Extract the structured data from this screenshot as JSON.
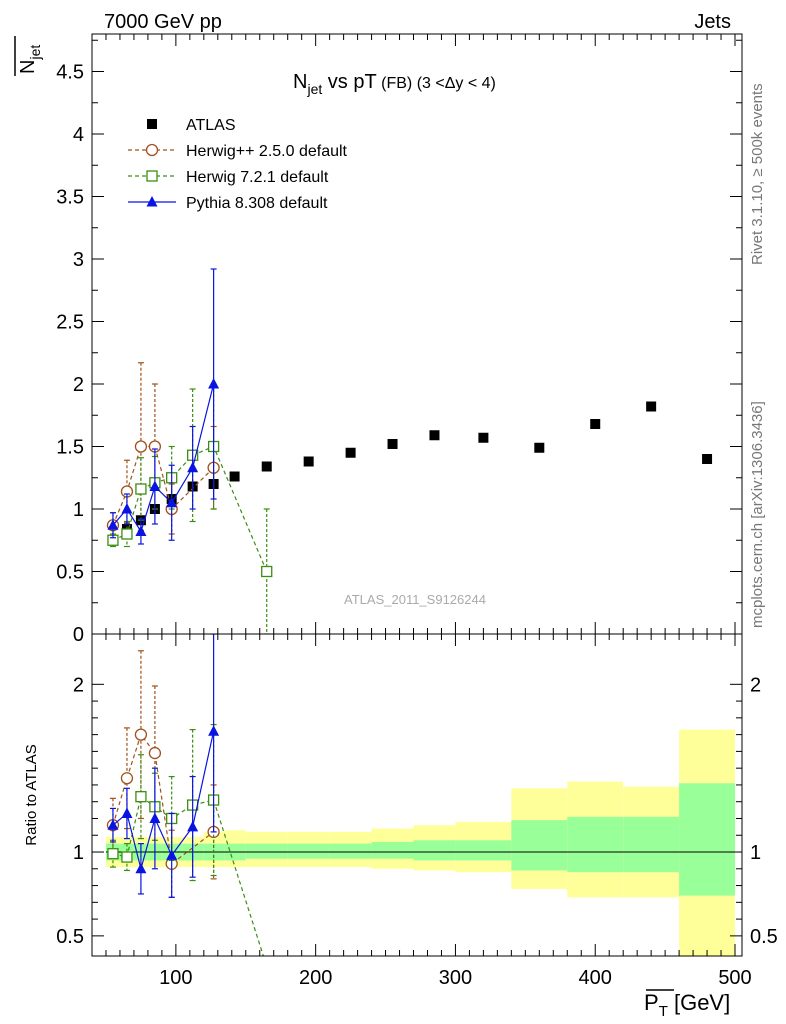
{
  "header": {
    "left": "7000 GeV pp",
    "right": "Jets"
  },
  "side_labels": {
    "top": "Rivet 3.1.10, ≥ 500k events",
    "bottom": "mcplots.cern.ch [arXiv:1306.3436]"
  },
  "watermark": "ATLAS_2011_S9126244",
  "colors": {
    "atlas": "#000000",
    "herwigpp": "#a0521e",
    "herwig7": "#3b8e12",
    "pythia": "#0a14e0",
    "band_outer": "#ffff99",
    "band_inner": "#99ff99"
  },
  "chart_data": [
    {
      "type": "scatter",
      "title_main": "N",
      "title_sub": "jet",
      "title_rest": " vs pT",
      "title_small": " (FB) (3 <Δy < 4)",
      "ylabel_main": "N",
      "ylabel_sub": "jet",
      "xlim": [
        40,
        505
      ],
      "ylim": [
        0,
        4.8
      ],
      "yticks": [
        0,
        0.5,
        1,
        1.5,
        2,
        2.5,
        3,
        3.5,
        4,
        4.5
      ],
      "ytick_labels": [
        "0",
        "0.5",
        "1",
        "1.5",
        "2",
        "2.5",
        "3",
        "3.5",
        "4",
        "4.5"
      ],
      "legend_position": "top-left",
      "series": [
        {
          "name": "ATLAS",
          "style": "square-filled",
          "x": [
            55,
            65,
            75,
            85,
            97,
            112,
            127,
            142,
            165,
            195,
            225,
            255,
            285,
            320,
            360,
            400,
            440,
            480
          ],
          "y": [
            0.75,
            0.84,
            0.91,
            1.0,
            1.08,
            1.18,
            1.2,
            1.26,
            1.34,
            1.38,
            1.45,
            1.52,
            1.59,
            1.57,
            1.49,
            1.68,
            1.82,
            1.4
          ]
        },
        {
          "name": "Herwig++ 2.5.0 default",
          "style": "circle-open-dashed",
          "x": [
            55,
            65,
            75,
            85,
            97,
            127
          ],
          "y": [
            0.87,
            1.14,
            1.5,
            1.5,
            1.0,
            1.33
          ],
          "yerr": [
            0.1,
            0.25,
            0.67,
            0.5,
            0.2,
            0.33
          ]
        },
        {
          "name": "Herwig 7.2.1 default",
          "style": "square-open-dashed",
          "x": [
            55,
            65,
            75,
            85,
            97,
            112,
            127,
            165
          ],
          "y": [
            0.75,
            0.8,
            1.16,
            1.21,
            1.25,
            1.43,
            1.5,
            0.5
          ],
          "yerr": [
            0.05,
            0.1,
            0.25,
            0.21,
            0.25,
            0.53,
            0.5,
            0.5
          ]
        },
        {
          "name": "Pythia 8.308 default",
          "style": "triangle-filled-solid",
          "x": [
            55,
            65,
            75,
            85,
            97,
            112,
            127
          ],
          "y": [
            0.87,
            1.0,
            0.82,
            1.18,
            1.05,
            1.33,
            2.0
          ],
          "yerr": [
            0.1,
            0.12,
            0.1,
            0.3,
            0.3,
            0.33,
            0.92
          ]
        }
      ]
    },
    {
      "type": "scatter",
      "ylabel": "Ratio to ATLAS",
      "xlabel_main": "P",
      "xlabel_sub": "T",
      "xlabel_rest": " [GeV]",
      "xlim": [
        40,
        505
      ],
      "ylim": [
        0.38,
        2.3
      ],
      "yticks": [
        0.5,
        1,
        2
      ],
      "ytick_labels": [
        "0.5",
        "1",
        "2"
      ],
      "xticks": [
        100,
        200,
        300,
        400,
        500
      ],
      "xtick_labels": [
        "100",
        "200",
        "300",
        "400",
        "500"
      ],
      "reference_line": 1,
      "uncertainty_bands": {
        "edges": [
          50,
          60,
          70,
          80,
          90,
          105,
          120,
          135,
          150,
          180,
          210,
          240,
          270,
          300,
          340,
          380,
          420,
          460,
          500
        ],
        "outer_low": [
          0.91,
          0.91,
          0.91,
          0.91,
          0.91,
          0.91,
          0.91,
          0.91,
          0.91,
          0.91,
          0.91,
          0.9,
          0.89,
          0.88,
          0.78,
          0.73,
          0.73,
          0.38,
          0.38
        ],
        "outer_high": [
          1.09,
          1.09,
          1.09,
          1.09,
          1.09,
          1.09,
          1.12,
          1.13,
          1.12,
          1.12,
          1.12,
          1.14,
          1.16,
          1.18,
          1.38,
          1.42,
          1.39,
          1.73,
          1.73
        ],
        "inner_low": [
          0.95,
          0.95,
          0.95,
          0.95,
          0.95,
          0.95,
          0.95,
          0.95,
          0.96,
          0.96,
          0.96,
          0.96,
          0.95,
          0.95,
          0.89,
          0.88,
          0.88,
          0.74,
          0.74
        ],
        "inner_high": [
          1.05,
          1.05,
          1.05,
          1.05,
          1.05,
          1.05,
          1.05,
          1.05,
          1.05,
          1.05,
          1.05,
          1.06,
          1.07,
          1.07,
          1.19,
          1.21,
          1.21,
          1.41,
          1.41
        ]
      },
      "series": [
        {
          "name": "Herwig++ 2.5.0 default",
          "style": "circle-open-dashed",
          "x": [
            55,
            65,
            75,
            85,
            97,
            127
          ],
          "y": [
            1.16,
            1.44,
            1.7,
            1.59,
            0.93,
            1.12
          ],
          "yerr": [
            0.16,
            0.3,
            0.5,
            0.4,
            0.2,
            0.28
          ]
        },
        {
          "name": "Herwig 7.2.1 default",
          "style": "square-open-dashed",
          "x": [
            55,
            65,
            75,
            85,
            97,
            112,
            127,
            163
          ],
          "y": [
            0.99,
            0.97,
            1.33,
            1.27,
            1.2,
            1.28,
            1.31,
            0.37
          ],
          "yerr": [
            0.08,
            0.08,
            0.25,
            0.2,
            0.25,
            0.45,
            0.45,
            0
          ]
        },
        {
          "name": "Pythia 8.308 default",
          "style": "triangle-filled-solid",
          "x": [
            55,
            65,
            75,
            85,
            97,
            112,
            127
          ],
          "y": [
            1.16,
            1.23,
            0.9,
            1.2,
            0.98,
            1.15,
            1.72
          ],
          "yerr": [
            0.1,
            0.15,
            0.15,
            0.3,
            0.25,
            0.3,
            0.6
          ]
        }
      ]
    }
  ]
}
